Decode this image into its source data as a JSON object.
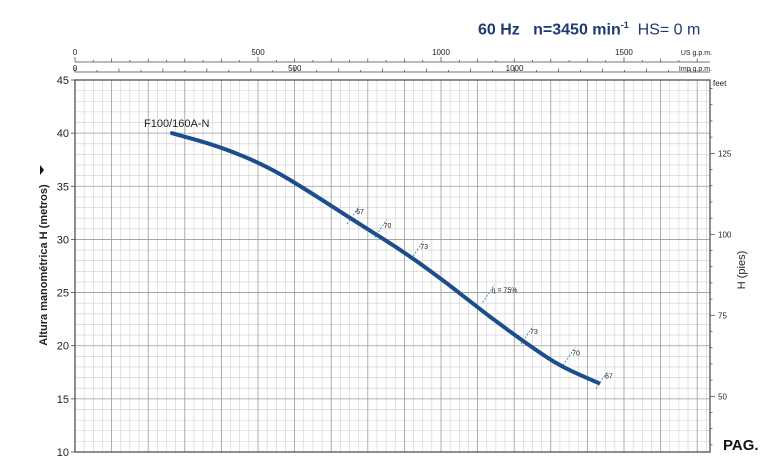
{
  "header": {
    "freq": "60 Hz",
    "speed_label": "n=3450 min",
    "speed_exp": "-1",
    "hs": "HS= 0 m"
  },
  "page_label": "PAG.",
  "chart_data": {
    "type": "line",
    "title": "",
    "ylabel": "Altura manométrica H (metros)",
    "y2label": "H (pies)",
    "y2unit": "feet",
    "ylim": [
      10,
      45
    ],
    "yticks": [
      10,
      15,
      20,
      25,
      30,
      35,
      40,
      45
    ],
    "y2ticks": [
      50,
      75,
      100,
      125
    ],
    "x_us_unit": "US g.p.m.",
    "x_us_ticks": [
      0,
      500,
      1000,
      1500
    ],
    "x_us_max": 1735,
    "x_imp_unit": "Imp g.p.m.",
    "x_imp_ticks": [
      0,
      500,
      1000
    ],
    "grid": true,
    "series": [
      {
        "name": "F100/160A-N",
        "x_us": [
          265,
          400,
          530,
          640,
          775,
          900,
          1020,
          1130,
          1250,
          1330,
          1430
        ],
        "y": [
          40.0,
          38.7,
          36.8,
          34.5,
          31.5,
          28.8,
          25.8,
          22.8,
          19.8,
          18.0,
          16.5
        ]
      }
    ],
    "efficiency_marks": [
      {
        "label": "67",
        "x_us": 760,
        "y": 32.3
      },
      {
        "label": "70",
        "x_us": 835,
        "y": 31.0
      },
      {
        "label": "73",
        "x_us": 935,
        "y": 29.0
      },
      {
        "label": "η = 75%",
        "x_us": 1130,
        "y": 24.9
      },
      {
        "label": "73",
        "x_us": 1235,
        "y": 21.0
      },
      {
        "label": "70",
        "x_us": 1350,
        "y": 19.0
      },
      {
        "label": "67",
        "x_us": 1440,
        "y": 16.8
      }
    ]
  }
}
